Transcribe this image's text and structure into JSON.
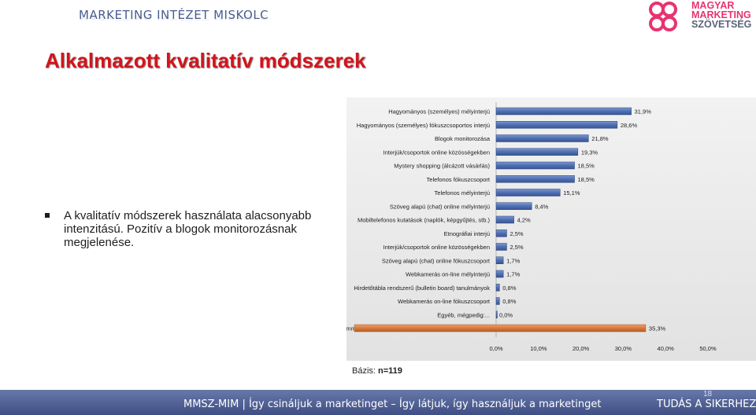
{
  "header": {
    "brand": "MARKETING INTÉZET MISKOLC",
    "logo_lines": [
      "MAGYAR",
      "MARKETING",
      "SZÖVETSÉG"
    ]
  },
  "slide": {
    "title": "Alkalmazott kvalitatív módszerek",
    "bullet": "A kvalitatív módszerek használata alacsonyabb intenzitású. Pozitív a blogok monitorozásnak megjelenése.",
    "basis_label": "Bázis:",
    "basis_value": "n=119"
  },
  "footer": {
    "text": "MMSZ-MIM |  Így csináljuk a marketinget – Így látjuk, így használjuk a marketinget",
    "right": "TUDÁS A SIKERHEZ",
    "page": "18"
  },
  "colors": {
    "bar": "#4d6fb4",
    "highlight": "#d87a3a",
    "title": "#d2141c",
    "footer": "#3f4f85"
  },
  "chart_data": {
    "type": "bar",
    "orientation": "horizontal",
    "categories": [
      "Hagyományos (személyes) mélyinterjú",
      "Hagyományos (személyes) fókuszcsoportos interjú",
      "Blogok monitorozása",
      "Interjúk/csoportok online közösségekben",
      "Mystery shopping (álcázott vásárlás)",
      "Telefonos fókuszcsoport",
      "Telefonos mélyinterjú",
      "Szöveg alapú (chat) online mélyinterjú",
      "Mobiltelefonos kutatások (naplók, képgyűjtés, stb.)",
      "Etnográfiai interjú",
      "Interjúk/csoportok online közösségekben",
      "Szöveg alapú (chat) online fókuszcsoport",
      "Webkamerás on-line mélyinterjú",
      "Hirdetőtábla rendszerű (bulletin board) tanulmányok",
      "Webkamerás on-line fókuszcsoport",
      "Egyéb, mégpedig:...",
      "Semmilyen kvalitatív kutatási módszert nem alkalmaztunk"
    ],
    "values": [
      31.9,
      28.6,
      21.8,
      19.3,
      18.5,
      18.5,
      15.1,
      8.4,
      4.2,
      2.5,
      2.5,
      1.7,
      1.7,
      0.8,
      0.8,
      0.0,
      35.3
    ],
    "value_labels": [
      "31,9%",
      "28,6%",
      "21,8%",
      "19,3%",
      "18,5%",
      "18,5%",
      "15,1%",
      "8,4%",
      "4,2%",
      "2,5%",
      "2,5%",
      "1,7%",
      "1,7%",
      "0,8%",
      "0,8%",
      "0,0%",
      "35,3%"
    ],
    "highlight_index": 16,
    "xlim": [
      0,
      50
    ],
    "xticks": [
      0,
      10,
      20,
      30,
      40,
      50
    ],
    "xtick_labels": [
      "0,0%",
      "10,0%",
      "20,0%",
      "30,0%",
      "40,0%",
      "50,0%"
    ],
    "title": "",
    "xlabel": "",
    "ylabel": "",
    "legend": "none",
    "grid": false
  }
}
